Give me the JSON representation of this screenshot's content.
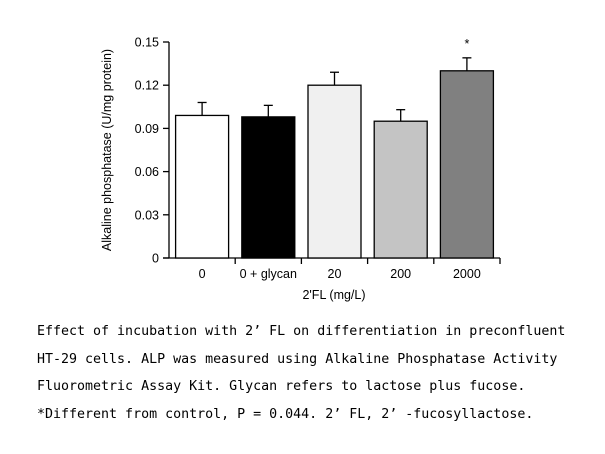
{
  "chart_data": {
    "type": "bar",
    "xlabel": "2'FL (mg/L)",
    "ylabel": "Alkaline phosphatase (U/mg protein)",
    "ylim": [
      0,
      0.15
    ],
    "yticks": [
      "0",
      "0.03",
      "0.06",
      "0.09",
      "0.12",
      "0.15"
    ],
    "categories": [
      "0",
      "0 + glycan",
      "20",
      "200",
      "2000"
    ],
    "values": [
      0.099,
      0.098,
      0.12,
      0.095,
      0.13
    ],
    "errors": [
      0.009,
      0.008,
      0.009,
      0.008,
      0.009
    ],
    "colors": [
      "#ffffff",
      "#000000",
      "#f0f0f0",
      "#c4c4c4",
      "#808080"
    ],
    "annotations": [
      "",
      "",
      "",
      "",
      "*"
    ],
    "grid": false
  },
  "caption": {
    "lines": [
      "Effect of incubation with 2’ FL on differentiation in preconfluent",
      "HT-29 cells. ALP was measured using Alkaline Phosphatase Activity",
      "Fluorometric Assay Kit. Glycan refers to lactose plus fucose.",
      "*Different from control, P = 0.044. 2’ FL, 2’ -fucosyllactose."
    ]
  }
}
